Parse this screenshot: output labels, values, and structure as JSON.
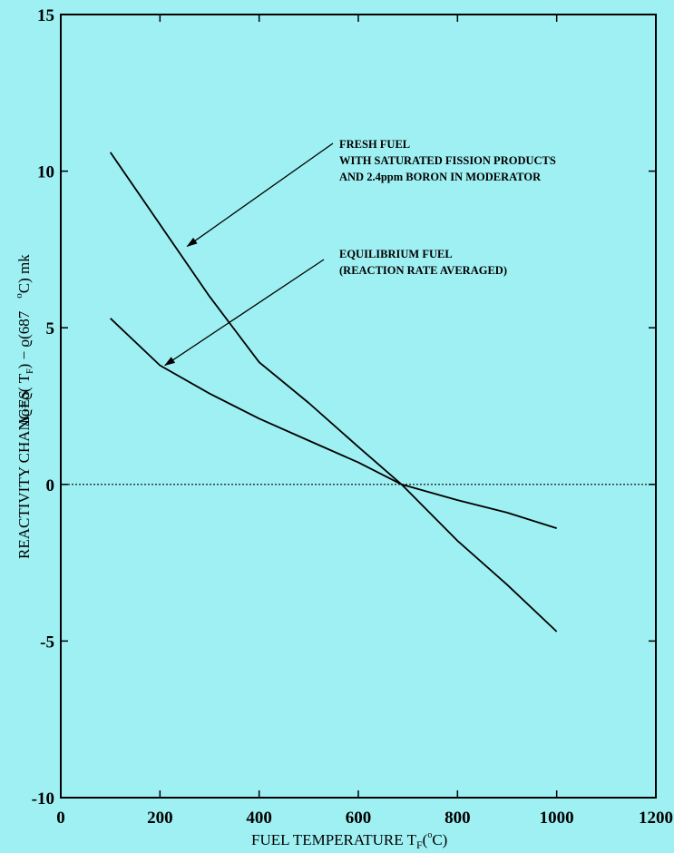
{
  "background_color": "#9ff0f3",
  "chart_data": {
    "type": "line",
    "xlim": [
      0,
      1200
    ],
    "ylim": [
      -10,
      15
    ],
    "x_ticks": [
      0,
      200,
      400,
      600,
      800,
      1000,
      1200
    ],
    "y_ticks": [
      15,
      10,
      5,
      0,
      -5,
      -10
    ],
    "x_tick_labels": [
      "0",
      "200",
      "400",
      "600",
      "800",
      "1000",
      "1200"
    ],
    "y_tick_labels": [
      "15",
      "10",
      "5",
      "0",
      "-5",
      "-10"
    ],
    "xlabel": "FUEL TEMPERATURE T",
    "xlabel_sub": "F",
    "xlabel_paren_open": "(",
    "xlabel_deg": "o",
    "xlabel_unit": "C)",
    "ylabel_main": "REACTIVITY CHANGES",
    "ylabel_formula": "Δϱ=ϱ(  T",
    "ylabel_sub": "F",
    "ylabel_mid": ")  −  ϱ(687",
    "ylabel_deg": "o",
    "ylabel_unit": "C) mk",
    "zero_line": "dotted",
    "series": [
      {
        "x": [
          100,
          200,
          300,
          400,
          500,
          600,
          687,
          800,
          900,
          1000
        ],
        "y": [
          10.6,
          8.3,
          6.0,
          3.9,
          2.6,
          1.2,
          0.0,
          -1.8,
          -3.2,
          -4.7
        ]
      },
      {
        "x": [
          100,
          200,
          300,
          400,
          500,
          600,
          687,
          800,
          900,
          1000
        ],
        "y": [
          5.3,
          3.8,
          2.9,
          2.1,
          1.4,
          0.7,
          0.0,
          -0.5,
          -0.9,
          -1.4
        ]
      }
    ],
    "annotations": [
      {
        "lines": [
          "FRESH FUEL",
          "WITH SATURATED FISSION PRODUCTS",
          "AND 2.4ppm BORON IN MODERATOR"
        ],
        "arrow_to": [
          255,
          7.6
        ]
      },
      {
        "lines": [
          "EQUILIBRIUM FUEL",
          "(REACTION RATE AVERAGED)"
        ],
        "arrow_to": [
          210,
          3.8
        ]
      }
    ]
  }
}
